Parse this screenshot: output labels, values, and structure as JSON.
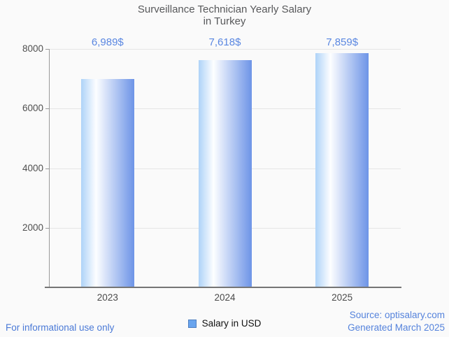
{
  "header": {
    "title_line1": "Surveillance Technician Yearly Salary",
    "title_line2": "in Turkey"
  },
  "chart_data": {
    "type": "bar",
    "title": "Surveillance Technician Yearly Salary in Turkey",
    "categories": [
      "2023",
      "2024",
      "2025"
    ],
    "series": [
      {
        "name": "Salary in USD",
        "values": [
          6989,
          7618,
          7859
        ]
      }
    ],
    "value_labels": [
      "6,989$",
      "7,618$",
      "7,859$"
    ],
    "xlabel": "",
    "ylabel": "",
    "ylim": [
      0,
      8000
    ],
    "yticks": [
      2000,
      4000,
      6000,
      8000
    ],
    "grid": "horizontal",
    "legend_position": "bottom-center",
    "bar_gradient": [
      "#aed3f8",
      "#ffffff",
      "#6d94e7"
    ],
    "value_label_color": "#5a87e1"
  },
  "legend": {
    "label": "Salary in USD",
    "marker_color": "#68a4ee",
    "marker_border_color": "#4e7fc1"
  },
  "footer": {
    "disclaimer": "For informational use only",
    "source": "Source: optisalary.com",
    "generated": "Generated March 2025"
  },
  "colors": {
    "background": "#fafafa",
    "title_text": "#58595b",
    "axis_line": "#9a9a9a",
    "baseline": "#757575",
    "gridline": "#e5e5e5",
    "tick_text": "#4f4f4f",
    "footer_link_blue": "#4b7ad7",
    "source_blue": "#5583dc"
  }
}
